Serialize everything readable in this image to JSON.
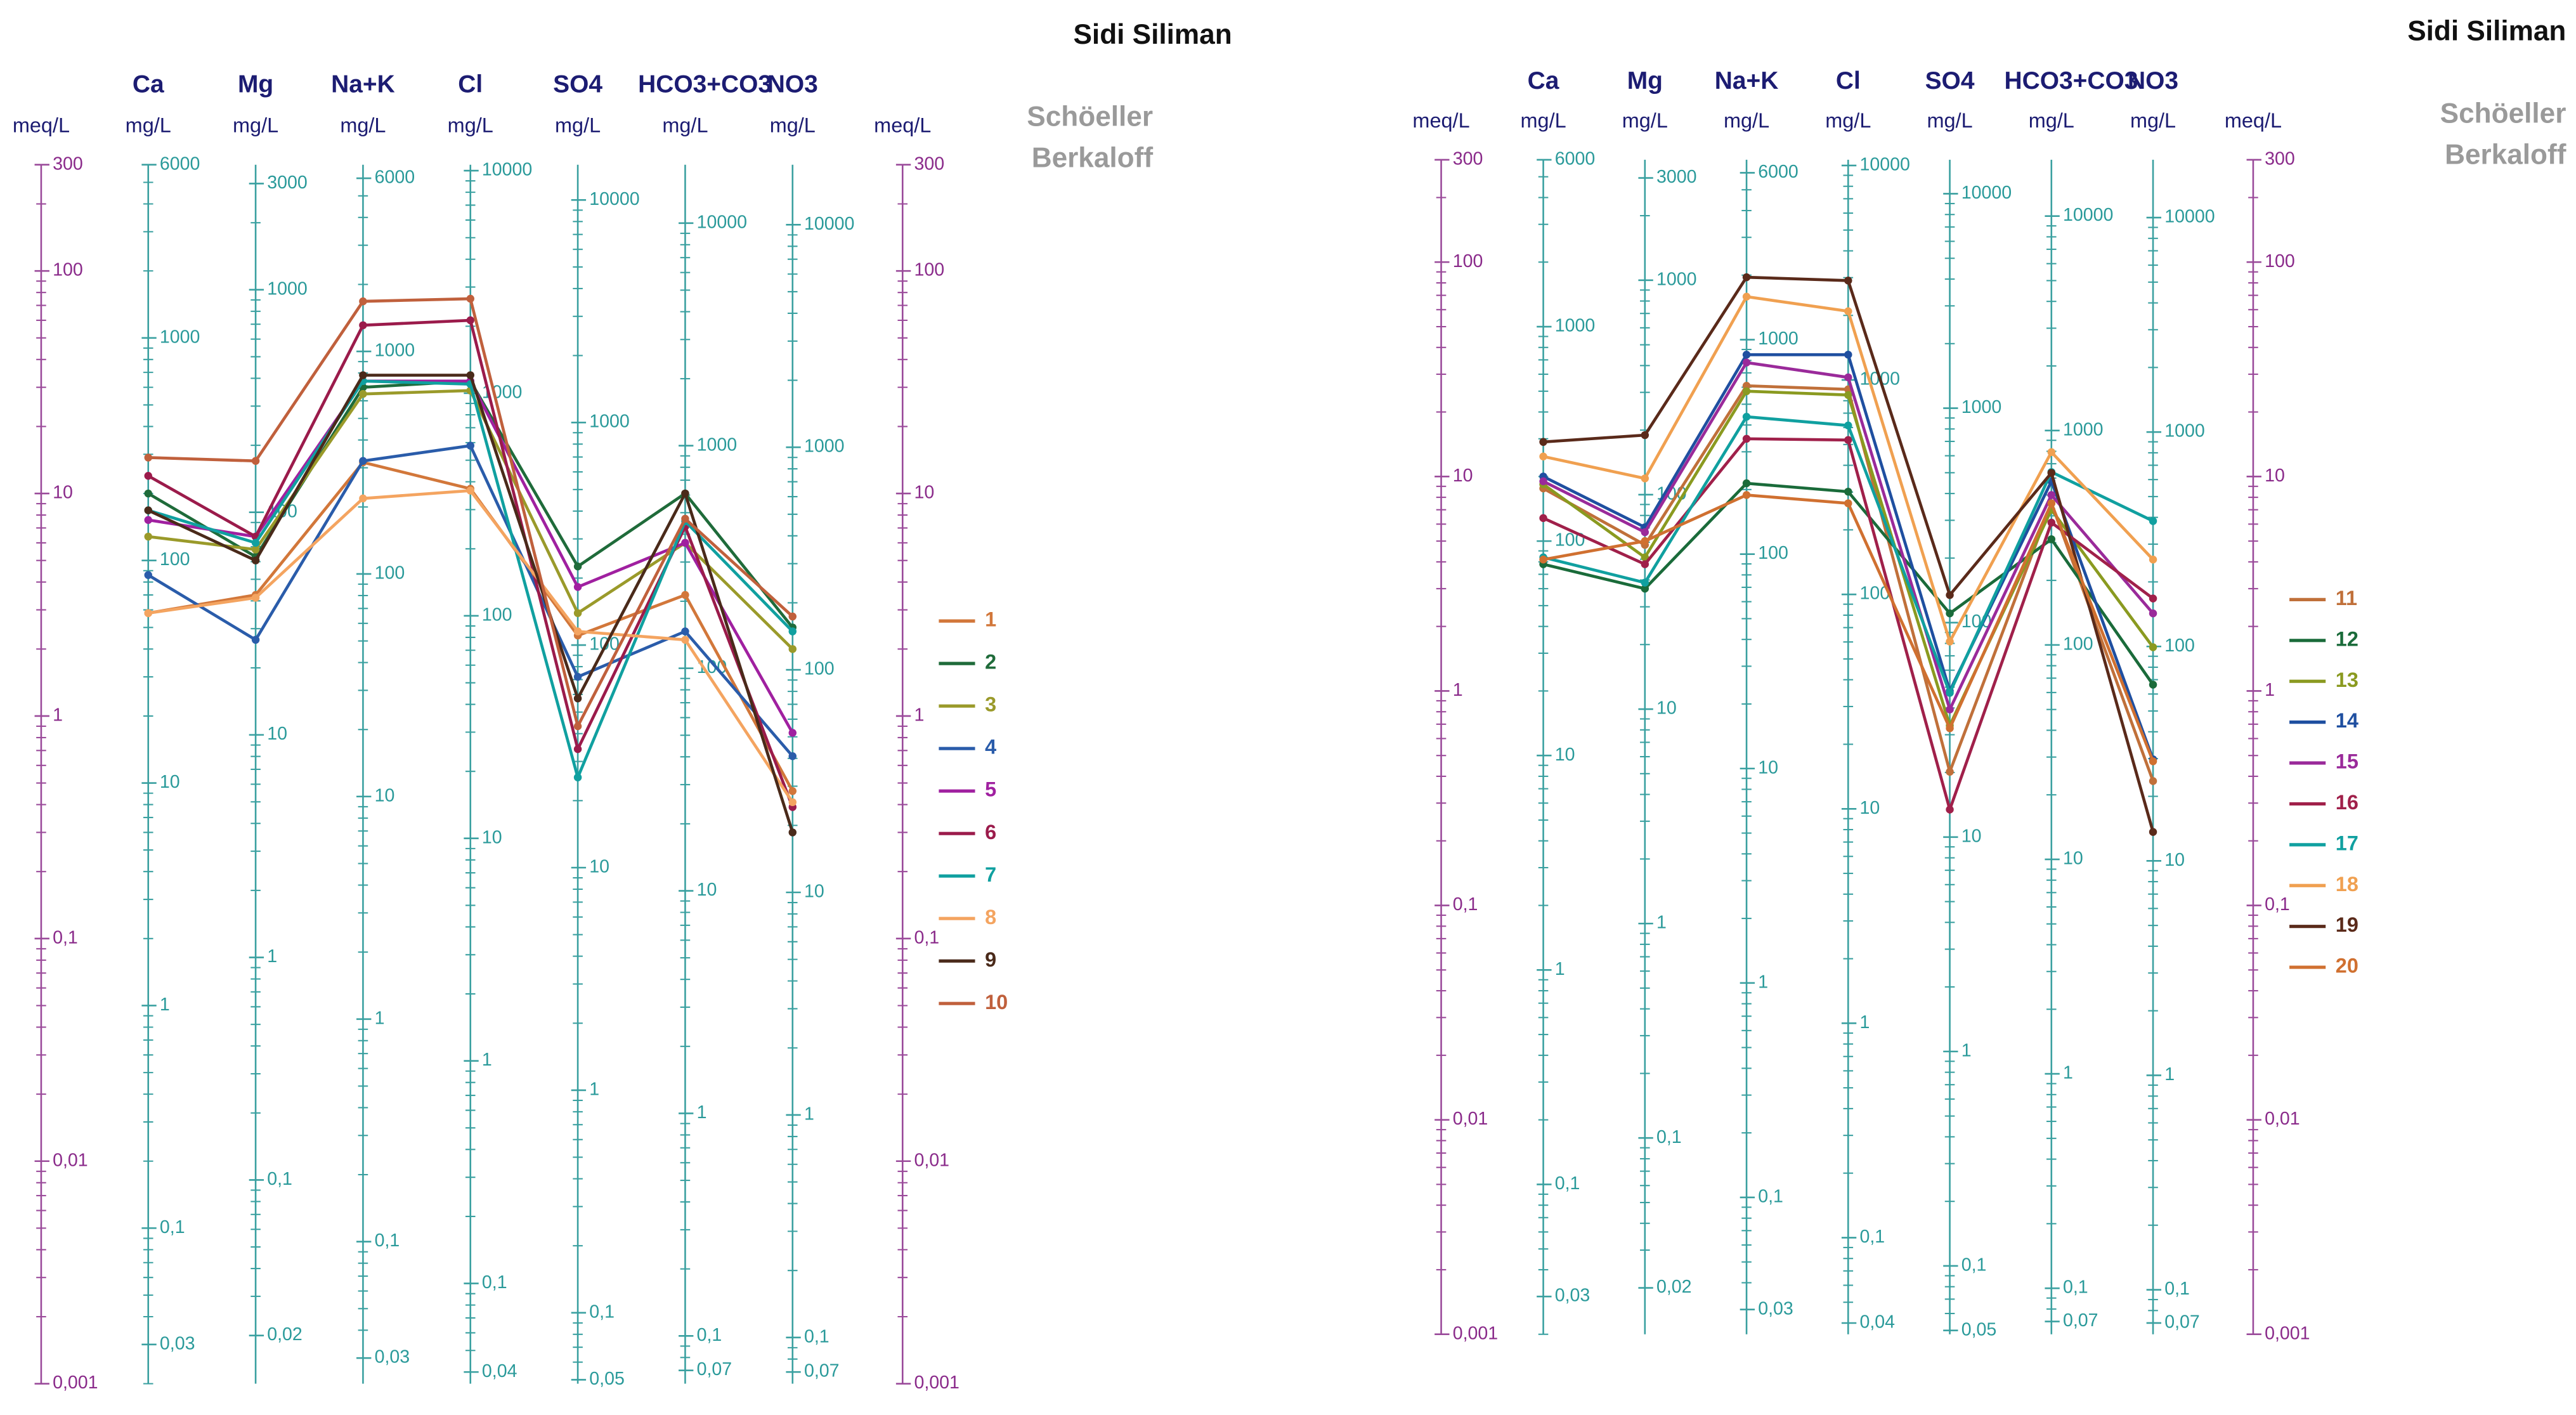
{
  "chart_data": [
    {
      "type": "line",
      "title": "Sidi Siliman",
      "subtitle_lines": [
        "Schöeller",
        "Berkaloff"
      ],
      "y_label": "meq/L",
      "log_scale": true,
      "categories": [
        "Ca",
        "Mg",
        "Na+K",
        "Cl",
        "SO4",
        "HCO3+CO3",
        "NO3"
      ],
      "ylim": [
        0.001,
        300
      ],
      "yticks": [
        {
          "value": 0.001,
          "label": "0,001"
        },
        {
          "value": 0.01,
          "label": "0,01"
        },
        {
          "value": 0.1,
          "label": "0,1"
        },
        1,
        10,
        100,
        300
      ],
      "ion_axes": [
        {
          "unit": "mg/L",
          "ylim": [
            0.02,
            6000
          ],
          "yticks": [
            {
              "value": 0.03,
              "label": "0,03"
            },
            {
              "value": 0.1,
              "label": "0,1"
            },
            1,
            10,
            100,
            1000,
            6000
          ]
        },
        {
          "unit": "mg/L",
          "ylim": [
            0.01215,
            3645
          ],
          "yticks": [
            {
              "value": 0.02,
              "label": "0,02"
            },
            {
              "value": 0.1,
              "label": "0,1"
            },
            1,
            10,
            100,
            1000,
            3000
          ]
        },
        {
          "unit": "mg/L",
          "ylim": [
            0.023,
            6900
          ],
          "yticks": [
            {
              "value": 0.03,
              "label": "0,03"
            },
            {
              "value": 0.1,
              "label": "0,1"
            },
            1,
            10,
            100,
            1000,
            6000
          ]
        },
        {
          "unit": "mg/L",
          "ylim": [
            0.03545,
            10635
          ],
          "yticks": [
            {
              "value": 0.04,
              "label": "0,04"
            },
            {
              "value": 0.1,
              "label": "0,1"
            },
            1,
            10,
            100,
            1000,
            10000
          ]
        },
        {
          "unit": "mg/L",
          "ylim": [
            0.048,
            14400
          ],
          "yticks": [
            {
              "value": 0.05,
              "label": "0,05"
            },
            {
              "value": 0.1,
              "label": "0,1"
            },
            1,
            10,
            100,
            1000,
            10000
          ]
        },
        {
          "unit": "mg/L",
          "ylim": [
            0.061,
            18300
          ],
          "yticks": [
            {
              "value": 0.07,
              "label": "0,07"
            },
            {
              "value": 0.1,
              "label": "0,1"
            },
            1,
            10,
            100,
            1000,
            10000
          ]
        },
        {
          "unit": "mg/L",
          "ylim": [
            0.062,
            18600
          ],
          "yticks": [
            {
              "value": 0.07,
              "label": "0,07"
            },
            {
              "value": 0.1,
              "label": "0,1"
            },
            1,
            10,
            100,
            1000,
            10000
          ]
        }
      ],
      "series": [
        {
          "name": "1",
          "color": "#d2773a",
          "values": [
            2.9,
            3.5,
            13.8,
            10.5,
            2.3,
            3.5,
            0.46
          ]
        },
        {
          "name": "2",
          "color": "#1f6b3a",
          "values": [
            10,
            5.2,
            30,
            32,
            4.7,
            10,
            2.5
          ]
        },
        {
          "name": "3",
          "color": "#9a9a2a",
          "values": [
            6.4,
            5.6,
            28,
            29,
            2.9,
            6,
            2
          ]
        },
        {
          "name": "4",
          "color": "#2a5caa",
          "values": [
            4.3,
            2.2,
            14,
            16.4,
            1.5,
            2.4,
            0.66
          ]
        },
        {
          "name": "5",
          "color": "#a020a0",
          "values": [
            7.6,
            6.4,
            32,
            32,
            3.8,
            6,
            0.84
          ]
        },
        {
          "name": "6",
          "color": "#9b1b4b",
          "values": [
            12,
            6.4,
            57,
            60,
            0.71,
            7.1,
            0.39
          ]
        },
        {
          "name": "7",
          "color": "#10a0a0",
          "values": [
            8.4,
            6,
            32,
            31,
            0.53,
            7.5,
            2.4
          ]
        },
        {
          "name": "8",
          "color": "#f4a460",
          "values": [
            2.9,
            3.4,
            9.5,
            10.3,
            2.4,
            2.2,
            0.41
          ]
        },
        {
          "name": "9",
          "color": "#4a2a1a",
          "values": [
            8.4,
            5,
            34,
            34,
            1.2,
            10,
            0.3
          ]
        },
        {
          "name": "10",
          "color": "#c0603c",
          "values": [
            14.5,
            14,
            73,
            75,
            0.9,
            7.7,
            2.8
          ]
        }
      ]
    },
    {
      "type": "line",
      "title": "Sidi Siliman",
      "subtitle_lines": [
        "Schöeller",
        "Berkaloff"
      ],
      "y_label": "meq/L",
      "log_scale": true,
      "categories": [
        "Ca",
        "Mg",
        "Na+K",
        "Cl",
        "SO4",
        "HCO3+CO3",
        "NO3"
      ],
      "ylim": [
        0.001,
        300
      ],
      "yticks": [
        {
          "value": 0.001,
          "label": "0,001"
        },
        {
          "value": 0.01,
          "label": "0,01"
        },
        {
          "value": 0.1,
          "label": "0,1"
        },
        1,
        10,
        100,
        300
      ],
      "ion_axes": [
        {
          "unit": "mg/L",
          "ylim": [
            0.02,
            6000
          ],
          "yticks": [
            {
              "value": 0.03,
              "label": "0,03"
            },
            {
              "value": 0.1,
              "label": "0,1"
            },
            1,
            10,
            100,
            1000,
            6000
          ]
        },
        {
          "unit": "mg/L",
          "ylim": [
            0.01215,
            3645
          ],
          "yticks": [
            {
              "value": 0.02,
              "label": "0,02"
            },
            {
              "value": 0.1,
              "label": "0,1"
            },
            1,
            10,
            100,
            1000,
            3000
          ]
        },
        {
          "unit": "mg/L",
          "ylim": [
            0.023,
            6900
          ],
          "yticks": [
            {
              "value": 0.03,
              "label": "0,03"
            },
            {
              "value": 0.1,
              "label": "0,1"
            },
            1,
            10,
            100,
            1000,
            6000
          ]
        },
        {
          "unit": "mg/L",
          "ylim": [
            0.03545,
            10635
          ],
          "yticks": [
            {
              "value": 0.04,
              "label": "0,04"
            },
            {
              "value": 0.1,
              "label": "0,1"
            },
            1,
            10,
            100,
            1000,
            10000
          ]
        },
        {
          "unit": "mg/L",
          "ylim": [
            0.048,
            14400
          ],
          "yticks": [
            {
              "value": 0.05,
              "label": "0,05"
            },
            {
              "value": 0.1,
              "label": "0,1"
            },
            1,
            10,
            100,
            1000,
            10000
          ]
        },
        {
          "unit": "mg/L",
          "ylim": [
            0.061,
            18300
          ],
          "yticks": [
            {
              "value": 0.07,
              "label": "0,07"
            },
            {
              "value": 0.1,
              "label": "0,1"
            },
            1,
            10,
            100,
            1000,
            10000
          ]
        },
        {
          "unit": "mg/L",
          "ylim": [
            0.062,
            18600
          ],
          "yticks": [
            {
              "value": 0.07,
              "label": "0,07"
            },
            {
              "value": 0.1,
              "label": "0,1"
            },
            1,
            10,
            100,
            1000,
            10000
          ]
        }
      ],
      "series": [
        {
          "name": "11",
          "color": "#c0703a",
          "values": [
            8.8,
            4.8,
            26.5,
            25.5,
            0.42,
            7.5,
            0.38
          ]
        },
        {
          "name": "12",
          "color": "#1a6b3a",
          "values": [
            3.9,
            3,
            9.3,
            8.5,
            2.3,
            5.1,
            1.07
          ]
        },
        {
          "name": "13",
          "color": "#8a9a20",
          "values": [
            9.2,
            4.2,
            25,
            24,
            0.69,
            7,
            1.6
          ]
        },
        {
          "name": "14",
          "color": "#1f4fa0",
          "values": [
            10,
            5.8,
            37,
            37,
            1,
            9.5,
            0.48
          ]
        },
        {
          "name": "15",
          "color": "#9a2a9a",
          "values": [
            9.5,
            5.5,
            34,
            29,
            0.82,
            8.2,
            2.3
          ]
        },
        {
          "name": "16",
          "color": "#a0204a",
          "values": [
            6.4,
            3.9,
            15,
            14.8,
            0.28,
            6.1,
            2.7
          ]
        },
        {
          "name": "17",
          "color": "#10a0a0",
          "values": [
            4.2,
            3.2,
            19,
            17.3,
            0.98,
            10.5,
            6.2
          ]
        },
        {
          "name": "18",
          "color": "#f0a050",
          "values": [
            12.4,
            9.8,
            69,
            59,
            1.7,
            13,
            4.1
          ]
        },
        {
          "name": "19",
          "color": "#5a2a1a",
          "values": [
            14.5,
            15.6,
            85,
            82,
            2.8,
            10.4,
            0.22
          ]
        },
        {
          "name": "20",
          "color": "#d07030",
          "values": [
            4.1,
            5,
            8.2,
            7.5,
            0.67,
            7.5,
            0.47
          ]
        }
      ]
    }
  ]
}
